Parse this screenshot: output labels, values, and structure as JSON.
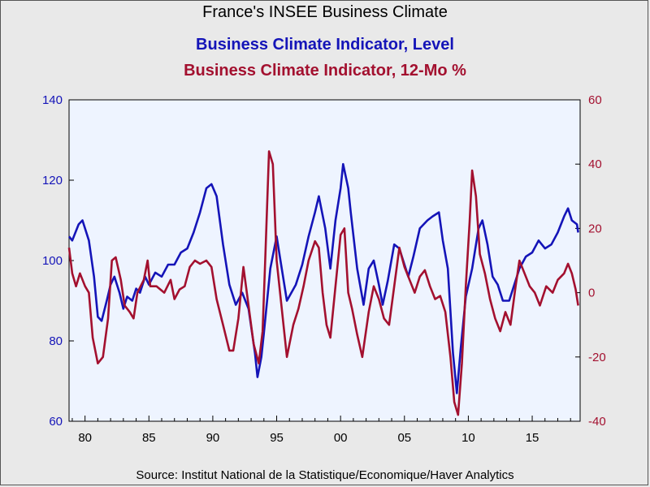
{
  "titles": {
    "main": "France's INSEE Business Climate",
    "series1": "Business Climate Indicator, Level",
    "series2": "Business Climate Indicator, 12-Mo %"
  },
  "source": "Source:  Institut National de la Statistique/Economique/Haver Analytics",
  "chart_data": {
    "type": "line",
    "x_range": [
      1978.75,
      2018.75
    ],
    "x_ticks": [
      {
        "value": 1980,
        "label": "80"
      },
      {
        "value": 1985,
        "label": "85"
      },
      {
        "value": 1990,
        "label": "90"
      },
      {
        "value": 1995,
        "label": "95"
      },
      {
        "value": 2000,
        "label": "00"
      },
      {
        "value": 2005,
        "label": "05"
      },
      {
        "value": 2010,
        "label": "10"
      },
      {
        "value": 2015,
        "label": "15"
      }
    ],
    "y_left": {
      "range": [
        60,
        140
      ],
      "ticks": [
        60,
        80,
        100,
        120,
        140
      ]
    },
    "y_right": {
      "range": [
        -40,
        60
      ],
      "ticks": [
        -40,
        -20,
        0,
        20,
        40,
        60
      ]
    },
    "colors": {
      "series1": "#1414b8",
      "series2": "#a3102f",
      "plot_bg": "#eef4ff"
    },
    "series": [
      {
        "name": "Business Climate Indicator, Level",
        "axis": "left",
        "points": [
          [
            1978.75,
            106
          ],
          [
            1979.0,
            105
          ],
          [
            1979.5,
            109
          ],
          [
            1979.8,
            110
          ],
          [
            1980.3,
            105
          ],
          [
            1980.7,
            96
          ],
          [
            1981.0,
            86
          ],
          [
            1981.3,
            85
          ],
          [
            1981.7,
            90
          ],
          [
            1982.0,
            94
          ],
          [
            1982.3,
            96
          ],
          [
            1982.7,
            92
          ],
          [
            1983.0,
            88
          ],
          [
            1983.3,
            91
          ],
          [
            1983.7,
            90
          ],
          [
            1984.0,
            93
          ],
          [
            1984.3,
            92
          ],
          [
            1984.7,
            96
          ],
          [
            1985.0,
            94
          ],
          [
            1985.5,
            97
          ],
          [
            1986.0,
            96
          ],
          [
            1986.5,
            99
          ],
          [
            1987.0,
            99
          ],
          [
            1987.5,
            102
          ],
          [
            1988.0,
            103
          ],
          [
            1988.5,
            107
          ],
          [
            1989.0,
            112
          ],
          [
            1989.5,
            118
          ],
          [
            1989.9,
            119
          ],
          [
            1990.3,
            116
          ],
          [
            1990.8,
            104
          ],
          [
            1991.3,
            94
          ],
          [
            1991.8,
            89
          ],
          [
            1992.3,
            92
          ],
          [
            1992.8,
            88
          ],
          [
            1993.3,
            77
          ],
          [
            1993.5,
            71
          ],
          [
            1993.8,
            76
          ],
          [
            1994.0,
            82
          ],
          [
            1994.5,
            98
          ],
          [
            1995.0,
            106
          ],
          [
            1995.3,
            100
          ],
          [
            1995.8,
            90
          ],
          [
            1996.5,
            94
          ],
          [
            1997.0,
            99
          ],
          [
            1997.5,
            106
          ],
          [
            1998.0,
            112
          ],
          [
            1998.3,
            116
          ],
          [
            1998.8,
            108
          ],
          [
            1999.2,
            98
          ],
          [
            1999.6,
            110
          ],
          [
            2000.0,
            118
          ],
          [
            2000.2,
            124
          ],
          [
            2000.6,
            118
          ],
          [
            2000.8,
            112
          ],
          [
            2001.3,
            98
          ],
          [
            2001.8,
            89
          ],
          [
            2002.2,
            98
          ],
          [
            2002.6,
            100
          ],
          [
            2003.0,
            94
          ],
          [
            2003.3,
            89
          ],
          [
            2003.7,
            95
          ],
          [
            2004.2,
            104
          ],
          [
            2004.6,
            103
          ],
          [
            2005.0,
            99
          ],
          [
            2005.3,
            96
          ],
          [
            2005.7,
            101
          ],
          [
            2006.2,
            108
          ],
          [
            2006.8,
            110
          ],
          [
            2007.2,
            111
          ],
          [
            2007.7,
            112
          ],
          [
            2008.0,
            105
          ],
          [
            2008.4,
            98
          ],
          [
            2008.8,
            77
          ],
          [
            2009.1,
            67
          ],
          [
            2009.4,
            78
          ],
          [
            2009.8,
            91
          ],
          [
            2010.3,
            98
          ],
          [
            2010.8,
            108
          ],
          [
            2011.1,
            110
          ],
          [
            2011.5,
            104
          ],
          [
            2011.9,
            96
          ],
          [
            2012.3,
            94
          ],
          [
            2012.7,
            90
          ],
          [
            2013.2,
            90
          ],
          [
            2013.6,
            94
          ],
          [
            2014.0,
            98
          ],
          [
            2014.5,
            101
          ],
          [
            2015.0,
            102
          ],
          [
            2015.5,
            105
          ],
          [
            2016.0,
            103
          ],
          [
            2016.5,
            104
          ],
          [
            2017.0,
            107
          ],
          [
            2017.5,
            111
          ],
          [
            2017.8,
            113
          ],
          [
            2018.1,
            110
          ],
          [
            2018.5,
            109
          ],
          [
            2018.6,
            107
          ]
        ]
      },
      {
        "name": "Business Climate Indicator, 12-Mo %",
        "axis": "right",
        "points": [
          [
            1978.75,
            14
          ],
          [
            1979.0,
            6
          ],
          [
            1979.3,
            2
          ],
          [
            1979.6,
            6
          ],
          [
            1980.0,
            2
          ],
          [
            1980.3,
            0
          ],
          [
            1980.6,
            -14
          ],
          [
            1981.0,
            -22
          ],
          [
            1981.4,
            -20
          ],
          [
            1981.8,
            -8
          ],
          [
            1982.1,
            10
          ],
          [
            1982.4,
            11
          ],
          [
            1982.8,
            4
          ],
          [
            1983.1,
            -4
          ],
          [
            1983.5,
            -6
          ],
          [
            1983.8,
            -8
          ],
          [
            1984.1,
            0
          ],
          [
            1984.6,
            4
          ],
          [
            1984.9,
            10
          ],
          [
            1985.1,
            2
          ],
          [
            1985.6,
            2
          ],
          [
            1986.2,
            0
          ],
          [
            1986.7,
            4
          ],
          [
            1987.0,
            -2
          ],
          [
            1987.4,
            1
          ],
          [
            1987.8,
            2
          ],
          [
            1988.2,
            8
          ],
          [
            1988.6,
            10
          ],
          [
            1989.0,
            9
          ],
          [
            1989.5,
            10
          ],
          [
            1989.9,
            8
          ],
          [
            1990.3,
            -2
          ],
          [
            1990.8,
            -10
          ],
          [
            1991.3,
            -18
          ],
          [
            1991.6,
            -18
          ],
          [
            1992.0,
            -8
          ],
          [
            1992.4,
            8
          ],
          [
            1992.8,
            -4
          ],
          [
            1993.2,
            -16
          ],
          [
            1993.6,
            -22
          ],
          [
            1993.9,
            -12
          ],
          [
            1994.1,
            10
          ],
          [
            1994.4,
            44
          ],
          [
            1994.7,
            40
          ],
          [
            1995.0,
            10
          ],
          [
            1995.4,
            -5
          ],
          [
            1995.8,
            -20
          ],
          [
            1996.3,
            -10
          ],
          [
            1996.7,
            -5
          ],
          [
            1997.1,
            2
          ],
          [
            1997.5,
            10
          ],
          [
            1998.0,
            16
          ],
          [
            1998.3,
            14
          ],
          [
            1998.6,
            0
          ],
          [
            1998.9,
            -10
          ],
          [
            1999.2,
            -14
          ],
          [
            1999.6,
            2
          ],
          [
            2000.0,
            18
          ],
          [
            2000.3,
            20
          ],
          [
            2000.6,
            0
          ],
          [
            2000.9,
            -5
          ],
          [
            2001.3,
            -13
          ],
          [
            2001.7,
            -20
          ],
          [
            2002.2,
            -6
          ],
          [
            2002.6,
            2
          ],
          [
            2003.0,
            -2
          ],
          [
            2003.4,
            -8
          ],
          [
            2003.8,
            -10
          ],
          [
            2004.2,
            2
          ],
          [
            2004.6,
            14
          ],
          [
            2005.0,
            8
          ],
          [
            2005.4,
            4
          ],
          [
            2005.8,
            0
          ],
          [
            2006.2,
            5
          ],
          [
            2006.6,
            7
          ],
          [
            2007.0,
            2
          ],
          [
            2007.4,
            -2
          ],
          [
            2007.8,
            -1
          ],
          [
            2008.2,
            -6
          ],
          [
            2008.6,
            -20
          ],
          [
            2008.9,
            -34
          ],
          [
            2009.2,
            -38
          ],
          [
            2009.5,
            -22
          ],
          [
            2009.8,
            2
          ],
          [
            2010.1,
            22
          ],
          [
            2010.3,
            38
          ],
          [
            2010.6,
            30
          ],
          [
            2010.9,
            12
          ],
          [
            2011.3,
            6
          ],
          [
            2011.7,
            -2
          ],
          [
            2012.1,
            -8
          ],
          [
            2012.5,
            -12
          ],
          [
            2012.9,
            -6
          ],
          [
            2013.3,
            -10
          ],
          [
            2013.7,
            2
          ],
          [
            2014.0,
            10
          ],
          [
            2014.4,
            6
          ],
          [
            2014.8,
            2
          ],
          [
            2015.2,
            0
          ],
          [
            2015.6,
            -4
          ],
          [
            2016.1,
            2
          ],
          [
            2016.6,
            0
          ],
          [
            2017.0,
            4
          ],
          [
            2017.5,
            6
          ],
          [
            2017.8,
            9
          ],
          [
            2018.1,
            6
          ],
          [
            2018.4,
            1
          ],
          [
            2018.6,
            -4
          ]
        ]
      }
    ]
  }
}
